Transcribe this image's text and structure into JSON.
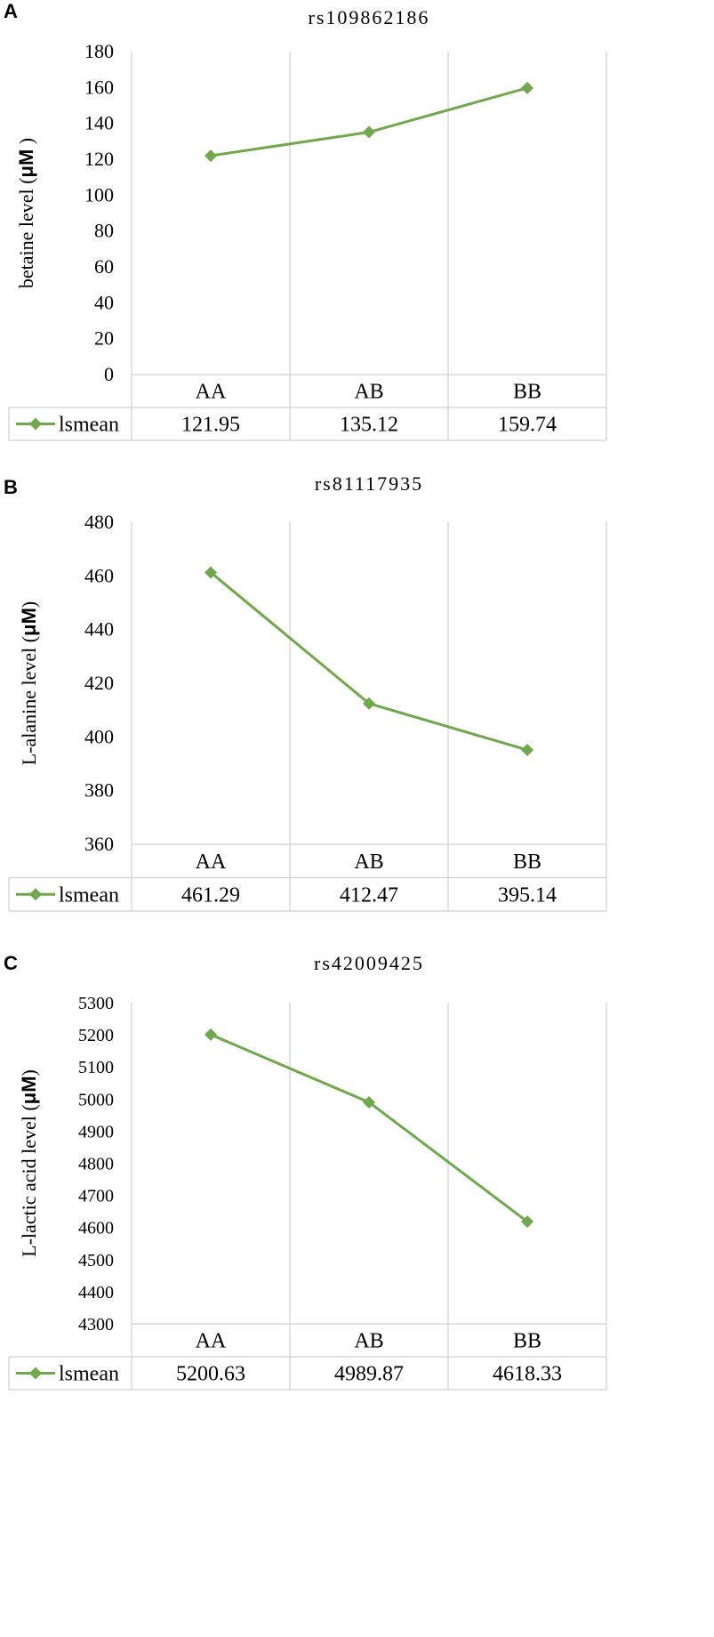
{
  "chart_data": [
    {
      "panel_label": "A",
      "type": "line",
      "title": "rs109862186",
      "ylabel_prefix": "betaine level (",
      "ylabel_unit": "μM",
      "ylabel_suffix": " )",
      "categories": [
        "AA",
        "AB",
        "BB"
      ],
      "series": [
        {
          "name": "lsmean",
          "values": [
            121.95,
            135.12,
            159.74
          ],
          "labels": [
            "121.95",
            "135.12",
            "159.74"
          ]
        }
      ],
      "ylim": [
        0,
        180
      ],
      "yticks": [
        0,
        20,
        40,
        60,
        80,
        100,
        120,
        140,
        160,
        180
      ],
      "grid": "vertical",
      "legend": "data-table",
      "line_color": "#70a84c"
    },
    {
      "panel_label": "B",
      "type": "line",
      "title": "rs81117935",
      "ylabel_prefix": "L-alanine level (",
      "ylabel_unit": "μM",
      "ylabel_suffix": ")",
      "categories": [
        "AA",
        "AB",
        "BB"
      ],
      "series": [
        {
          "name": "lsmean",
          "values": [
            461.29,
            412.47,
            395.14
          ],
          "labels": [
            "461.29",
            "412.47",
            "395.14"
          ]
        }
      ],
      "ylim": [
        360,
        480
      ],
      "yticks": [
        360,
        380,
        400,
        420,
        440,
        460,
        480
      ],
      "grid": "vertical",
      "legend": "data-table",
      "line_color": "#70a84c"
    },
    {
      "panel_label": "C",
      "type": "line",
      "title": "rs42009425",
      "ylabel_prefix": "L-lactic acid level  (",
      "ylabel_unit": "μM",
      "ylabel_suffix": ")",
      "categories": [
        "AA",
        "AB",
        "BB"
      ],
      "series": [
        {
          "name": "lsmean",
          "values": [
            5200.63,
            4989.87,
            4618.33
          ],
          "labels": [
            "5200.63",
            "4989.87",
            "4618.33"
          ]
        }
      ],
      "ylim": [
        4300,
        5300
      ],
      "yticks": [
        4300,
        4400,
        4500,
        4600,
        4700,
        4800,
        4900,
        5000,
        5100,
        5200,
        5300
      ],
      "grid": "vertical",
      "legend": "data-table",
      "line_color": "#70a84c"
    }
  ]
}
